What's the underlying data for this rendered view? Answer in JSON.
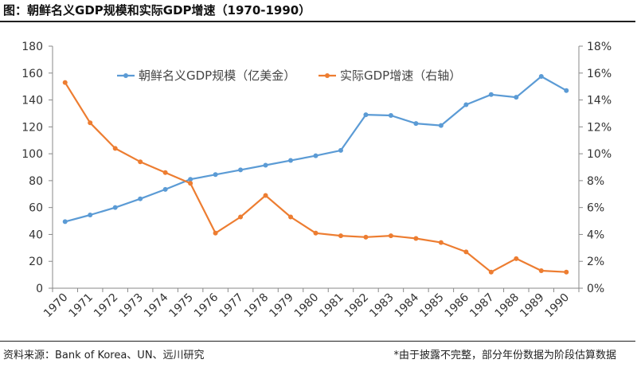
{
  "title": "图：朝鲜名义GDP规模和实际GDP增速（1970-1990）",
  "source": "资料来源：Bank of Korea、UN、远川研究",
  "note": "*由于披露不完整，部分年份数据为阶段估算数据",
  "colors": {
    "series1": "#5b9bd5",
    "series2": "#ed7d31",
    "axis": "#888888"
  },
  "chart_data": {
    "type": "line",
    "x": [
      "1970",
      "1971",
      "1972",
      "1973",
      "1974",
      "1975",
      "1976",
      "1977",
      "1978",
      "1979",
      "1980",
      "1981",
      "1982",
      "1983",
      "1984",
      "1985",
      "1986",
      "1987",
      "1988",
      "1989",
      "1990"
    ],
    "y_left_ticks": [
      "0",
      "20",
      "40",
      "60",
      "80",
      "100",
      "120",
      "140",
      "160",
      "180"
    ],
    "y_right_ticks": [
      "0%",
      "2%",
      "4%",
      "6%",
      "8%",
      "10%",
      "12%",
      "14%",
      "16%",
      "18%"
    ],
    "ylim_left": [
      0,
      180
    ],
    "ylim_right": [
      0,
      18
    ],
    "legend_position": "top-center",
    "grid": false,
    "series": [
      {
        "name": "朝鲜名义GDP规模（亿美金）",
        "axis": "left",
        "color": "#5b9bd5",
        "values": [
          49.5,
          54.5,
          60,
          66.5,
          73.5,
          81,
          84.5,
          88,
          91.5,
          95,
          98.5,
          102.5,
          129,
          128.5,
          122.5,
          121,
          136.5,
          144,
          142,
          157.5,
          147
        ]
      },
      {
        "name": "实际GDP增速（右轴）",
        "axis": "right",
        "color": "#ed7d31",
        "values": [
          15.3,
          12.3,
          10.4,
          9.4,
          8.6,
          7.8,
          4.1,
          5.3,
          6.9,
          5.3,
          4.1,
          3.9,
          3.8,
          3.9,
          3.7,
          3.4,
          2.7,
          1.2,
          2.2,
          1.3,
          1.2
        ]
      }
    ]
  }
}
